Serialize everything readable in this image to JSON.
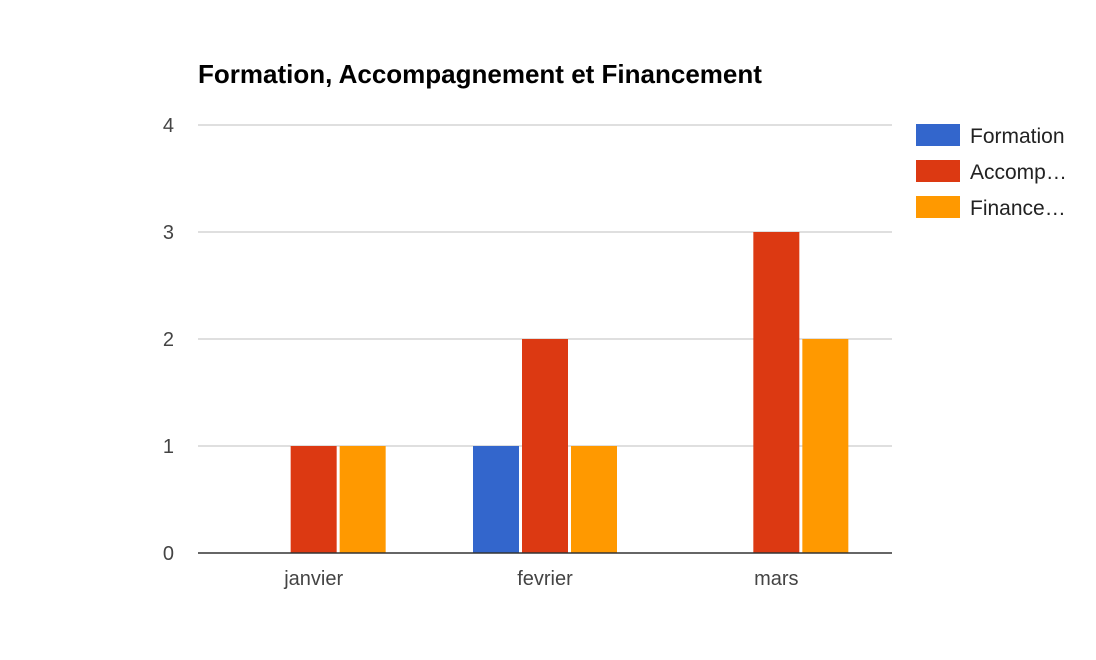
{
  "chart_data": {
    "type": "bar",
    "title": "Formation, Accompagnement et Financement",
    "categories": [
      "janvier",
      "fevrier",
      "mars"
    ],
    "series": [
      {
        "name": "Formation",
        "legend_label": "Formation",
        "color": "#3366cc",
        "values": [
          0,
          1,
          0
        ]
      },
      {
        "name": "Accompagnement",
        "legend_label": "Accomp…",
        "color": "#dc3912",
        "values": [
          1,
          2,
          3
        ]
      },
      {
        "name": "Financement",
        "legend_label": "Finance…",
        "color": "#ff9900",
        "values": [
          1,
          1,
          2
        ]
      }
    ],
    "ylim": [
      0,
      4
    ],
    "yticks": [
      "0",
      "1",
      "2",
      "3",
      "4"
    ],
    "grid": true,
    "legend": "right"
  }
}
